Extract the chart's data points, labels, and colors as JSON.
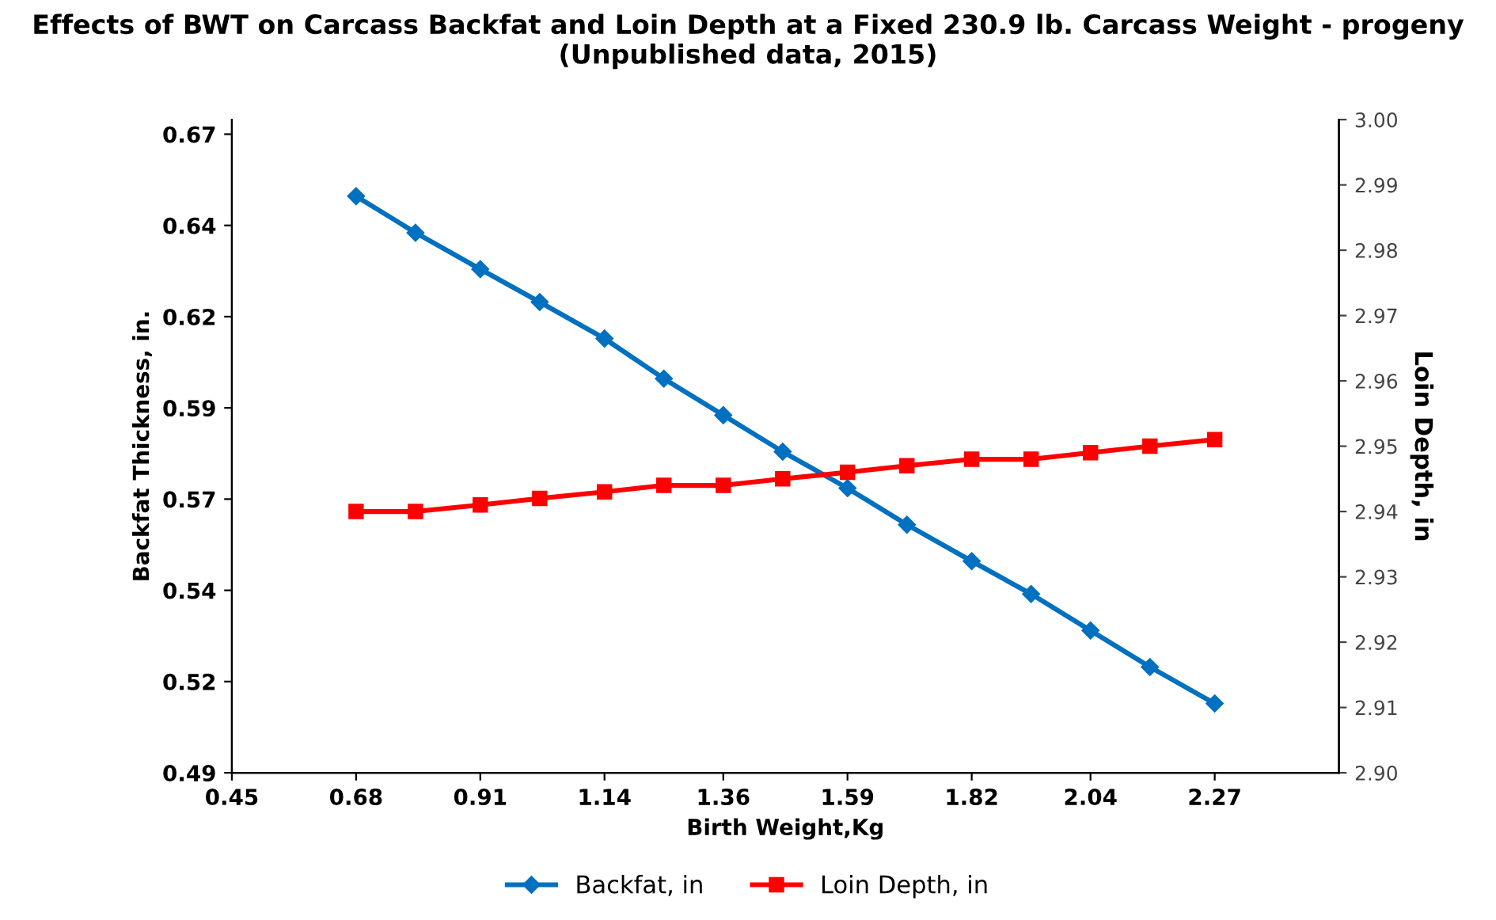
{
  "chart_data": {
    "type": "line",
    "title": "Effects of BWT on Carcass Backfat and Loin Depth at a Fixed 230.9 lb. Carcass Weight - progeny (Unpublished data, 2015)",
    "xlabel": "Birth Weight,Kg",
    "ylabel": "Backfat Thickness, in.",
    "y2label": "Loin Depth, in",
    "x": [
      0.68,
      0.79,
      0.91,
      1.02,
      1.14,
      1.25,
      1.36,
      1.47,
      1.59,
      1.7,
      1.82,
      1.93,
      2.04,
      2.15,
      2.27
    ],
    "series": [
      {
        "name": "Backfat, in",
        "color": "#0070c0",
        "marker": "diamond",
        "values": [
          0.648,
          0.638,
          0.628,
          0.619,
          0.609,
          0.598,
          0.588,
          0.578,
          0.568,
          0.558,
          0.548,
          0.539,
          0.529,
          0.519,
          0.509
        ]
      },
      {
        "name": "Loin Depth, in",
        "color": "#ff0000",
        "marker": "square",
        "axis": "y2",
        "values": [
          2.94,
          2.94,
          2.941,
          2.942,
          2.943,
          2.944,
          2.944,
          2.945,
          2.946,
          2.947,
          2.948,
          2.948,
          2.949,
          2.95,
          2.951
        ]
      }
    ],
    "xlim": [
      0.45,
      2.5
    ],
    "xticks": [
      0.45,
      0.68,
      0.91,
      1.14,
      1.36,
      1.59,
      1.82,
      2.04,
      2.27
    ],
    "ylim": [
      0.49,
      0.669
    ],
    "yticks": [
      0.49,
      {
        "value": 0.515,
        "label": "0.52"
      },
      0.54,
      {
        "value": 0.565,
        "label": "0.57"
      },
      0.59,
      {
        "value": 0.615,
        "label": "0.62"
      },
      0.64,
      {
        "value": 0.665,
        "label": "0.67"
      }
    ],
    "y2lim": [
      2.9,
      3.0
    ],
    "y2ticks": [
      {
        "value": 2.9,
        "label": "2.90"
      },
      2.91,
      2.92,
      2.93,
      2.94,
      2.95,
      2.96,
      2.97,
      2.98,
      2.99,
      {
        "value": 3.0,
        "label": "3.00"
      }
    ],
    "grid": false,
    "legend": "bottom",
    "line_style": "solid"
  }
}
